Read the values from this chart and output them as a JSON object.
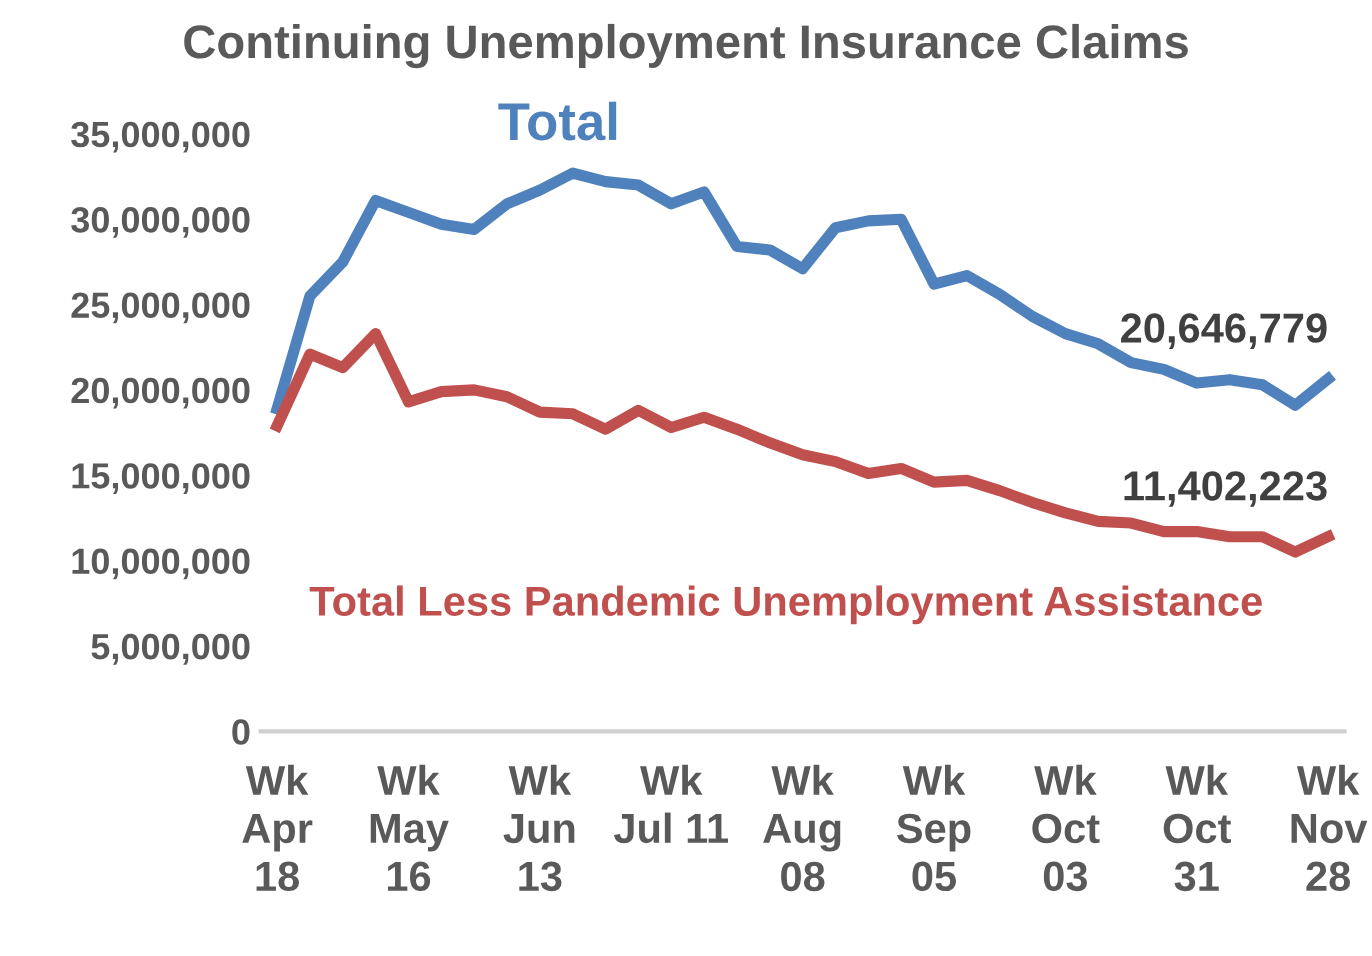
{
  "chart_data": {
    "type": "line",
    "title": "Continuing Unemployment Insurance Claims",
    "categories": [
      "Wk\nApr\n18",
      null,
      null,
      null,
      "Wk\nMay\n16",
      null,
      null,
      null,
      "Wk\nJun\n13",
      null,
      null,
      null,
      "Wk\nJul 11",
      null,
      null,
      null,
      "Wk\nAug\n08",
      null,
      null,
      null,
      "Wk\nSep\n05",
      null,
      null,
      null,
      "Wk\nOct\n03",
      null,
      null,
      null,
      "Wk\nOct\n31",
      null,
      null,
      null,
      "Wk\nNov\n28"
    ],
    "series": [
      {
        "name": "Total",
        "color": "#4f81bd",
        "values": [
          18900000,
          25500000,
          27500000,
          31100000,
          30400000,
          29700000,
          29400000,
          30900000,
          31700000,
          32700000,
          32200000,
          32000000,
          30900000,
          31600000,
          28400000,
          28200000,
          27100000,
          29500000,
          29900000,
          30000000,
          26200000,
          26700000,
          25600000,
          24300000,
          23300000,
          22700000,
          21600000,
          21200000,
          20400000,
          20600000,
          20300000,
          19100000,
          20646779
        ],
        "value_labels": [
          null,
          null,
          null,
          null,
          null,
          null,
          null,
          null,
          null,
          null,
          null,
          null,
          null,
          null,
          null,
          null,
          null,
          null,
          null,
          null,
          null,
          null,
          null,
          null,
          null,
          null,
          null,
          null,
          null,
          null,
          null,
          null,
          "20,646,779"
        ]
      },
      {
        "name": "Total Less Pandemic Unemployment Assistance",
        "color": "#c0504d",
        "values": [
          17900000,
          22100000,
          21300000,
          23300000,
          19300000,
          19900000,
          20000000,
          19600000,
          18700000,
          18600000,
          17700000,
          18800000,
          17800000,
          18400000,
          17700000,
          16900000,
          16200000,
          15800000,
          15100000,
          15400000,
          14600000,
          14700000,
          14100000,
          13400000,
          12800000,
          12300000,
          12200000,
          11700000,
          11700000,
          11400000,
          11400000,
          10500000,
          11402223
        ],
        "value_labels": [
          null,
          null,
          null,
          null,
          null,
          null,
          null,
          null,
          null,
          null,
          null,
          null,
          null,
          null,
          null,
          null,
          null,
          null,
          null,
          null,
          null,
          null,
          null,
          null,
          null,
          null,
          null,
          null,
          null,
          null,
          null,
          null,
          "11,402,223"
        ]
      }
    ],
    "ylim": [
      0,
      35000000
    ],
    "yticks": [
      {
        "value": 0,
        "label": "0"
      },
      {
        "value": 5000000,
        "label": "5,000,000"
      },
      {
        "value": 10000000,
        "label": "10,000,000"
      },
      {
        "value": 15000000,
        "label": "15,000,000"
      },
      {
        "value": 20000000,
        "label": "20,000,000"
      },
      {
        "value": 25000000,
        "label": "25,000,000"
      },
      {
        "value": 30000000,
        "label": "30,000,000"
      },
      {
        "value": 35000000,
        "label": "35,000,000"
      }
    ],
    "grid": false,
    "legend": false,
    "marker": "none",
    "line_style": "solid"
  }
}
